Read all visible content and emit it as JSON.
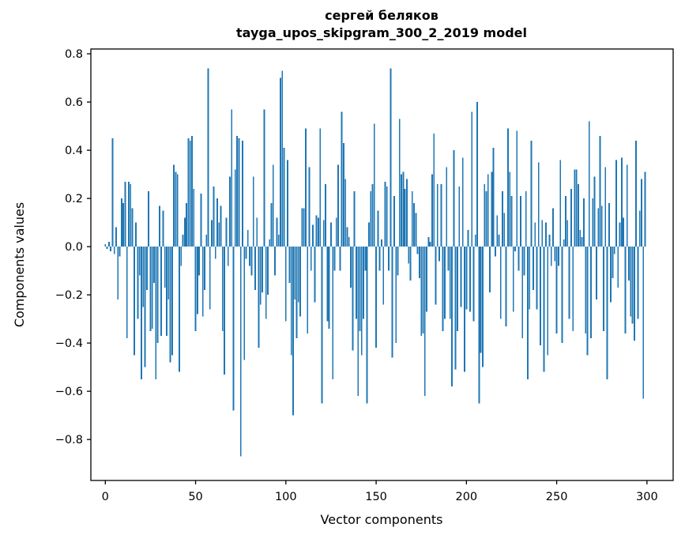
{
  "page": {
    "background_color": "#ffffff"
  },
  "chart_data": {
    "type": "bar",
    "title": "сергей беляков",
    "subtitle": "tayga_upos_skipgram_300_2_2019 model",
    "xlabel": "Vector components",
    "ylabel": "Components values",
    "bar_color": "#1f77b4",
    "spine_color": "#000000",
    "grid": false,
    "legend": null,
    "bar_width_units": 0.8,
    "xlim": [
      -8,
      314.5
    ],
    "ylim": [
      -0.97,
      0.82
    ],
    "x_tick_values": [
      0,
      50,
      100,
      150,
      200,
      250,
      300
    ],
    "x_tick_labels": [
      "0",
      "50",
      "100",
      "150",
      "200",
      "250",
      "300"
    ],
    "y_tick_values": [
      0.8,
      0.6,
      0.4,
      0.2,
      0.0,
      -0.2,
      -0.4,
      -0.6,
      -0.8
    ],
    "y_tick_labels": [
      "0.8",
      "0.6",
      "0.4",
      "0.2",
      "0.0",
      "−0.2",
      "−0.4",
      "−0.6",
      "−0.8"
    ],
    "x_start": 0,
    "values": [
      0.01,
      -0.01,
      0.02,
      -0.02,
      0.45,
      -0.03,
      0.08,
      -0.22,
      -0.04,
      0.2,
      0.18,
      0.27,
      -0.38,
      0.27,
      0.26,
      0.16,
      -0.45,
      0.1,
      -0.3,
      -0.12,
      -0.55,
      -0.25,
      -0.5,
      -0.18,
      0.23,
      -0.35,
      -0.34,
      -0.15,
      -0.55,
      -0.4,
      0.17,
      -0.37,
      0.15,
      -0.17,
      -0.37,
      -0.22,
      -0.48,
      -0.45,
      0.34,
      0.31,
      0.3,
      -0.52,
      -0.08,
      0.05,
      0.12,
      0.18,
      0.45,
      0.44,
      0.46,
      0.24,
      -0.35,
      -0.28,
      -0.12,
      0.22,
      -0.29,
      -0.18,
      0.05,
      0.74,
      -0.26,
      0.11,
      0.25,
      -0.05,
      0.2,
      0.1,
      0.17,
      -0.35,
      -0.53,
      0.12,
      -0.08,
      0.29,
      0.57,
      -0.68,
      0.32,
      0.46,
      0.45,
      -0.87,
      0.44,
      -0.47,
      -0.05,
      0.07,
      -0.08,
      -0.12,
      0.29,
      -0.18,
      0.12,
      -0.42,
      -0.24,
      -0.19,
      0.57,
      -0.3,
      -0.2,
      0.03,
      0.18,
      0.34,
      -0.12,
      0.12,
      0.05,
      0.7,
      0.73,
      0.41,
      -0.31,
      0.36,
      -0.15,
      -0.45,
      -0.7,
      -0.22,
      -0.38,
      -0.23,
      -0.29,
      0.16,
      0.16,
      0.49,
      -0.36,
      0.33,
      -0.1,
      0.09,
      -0.23,
      0.13,
      0.12,
      0.49,
      -0.65,
      0.11,
      0.26,
      -0.31,
      -0.34,
      0.1,
      -0.55,
      -0.1,
      0.12,
      0.34,
      -0.1,
      0.56,
      0.43,
      0.28,
      0.08,
      0.04,
      -0.17,
      -0.43,
      0.23,
      -0.3,
      -0.62,
      -0.35,
      -0.45,
      -0.3,
      -0.1,
      -0.65,
      0.1,
      0.23,
      0.26,
      0.51,
      -0.42,
      0.15,
      -0.1,
      0.03,
      -0.24,
      0.27,
      0.25,
      -0.1,
      0.74,
      -0.46,
      0.21,
      -0.4,
      -0.12,
      0.53,
      0.3,
      0.31,
      0.24,
      0.28,
      -0.07,
      -0.14,
      0.23,
      0.18,
      0.14,
      -0.03,
      -0.13,
      -0.37,
      -0.36,
      -0.62,
      -0.27,
      0.04,
      0.02,
      0.3,
      0.47,
      -0.24,
      0.26,
      -0.06,
      0.26,
      -0.35,
      -0.3,
      0.33,
      -0.1,
      -0.3,
      -0.58,
      0.4,
      -0.51,
      -0.35,
      0.25,
      -0.25,
      0.37,
      -0.52,
      -0.26,
      0.07,
      -0.27,
      0.56,
      -0.31,
      0.05,
      0.6,
      -0.65,
      -0.44,
      -0.5,
      0.26,
      0.23,
      0.3,
      -0.19,
      0.31,
      0.41,
      -0.04,
      0.13,
      0.05,
      -0.3,
      0.23,
      0.14,
      -0.33,
      0.49,
      0.31,
      0.21,
      -0.27,
      -0.02,
      0.48,
      -0.1,
      0.21,
      -0.38,
      -0.12,
      0.23,
      -0.55,
      -0.26,
      0.44,
      -0.18,
      0.1,
      -0.26,
      0.35,
      -0.41,
      0.11,
      -0.52,
      0.1,
      -0.45,
      0.05,
      -0.08,
      0.16,
      -0.06,
      -0.36,
      -0.08,
      0.36,
      -0.4,
      0.03,
      0.21,
      0.11,
      -0.3,
      0.24,
      -0.35,
      0.32,
      0.32,
      0.26,
      0.07,
      0.04,
      0.2,
      -0.36,
      -0.45,
      0.52,
      -0.38,
      0.2,
      0.29,
      -0.22,
      0.16,
      0.46,
      0.17,
      -0.35,
      0.33,
      -0.55,
      0.18,
      -0.23,
      -0.13,
      -0.03,
      0.36,
      -0.17,
      0.1,
      0.37,
      0.12,
      -0.36,
      0.34,
      -0.14,
      -0.29,
      -0.32,
      -0.39,
      0.44,
      -0.3,
      0.15,
      0.28,
      -0.63,
      0.31
    ]
  }
}
